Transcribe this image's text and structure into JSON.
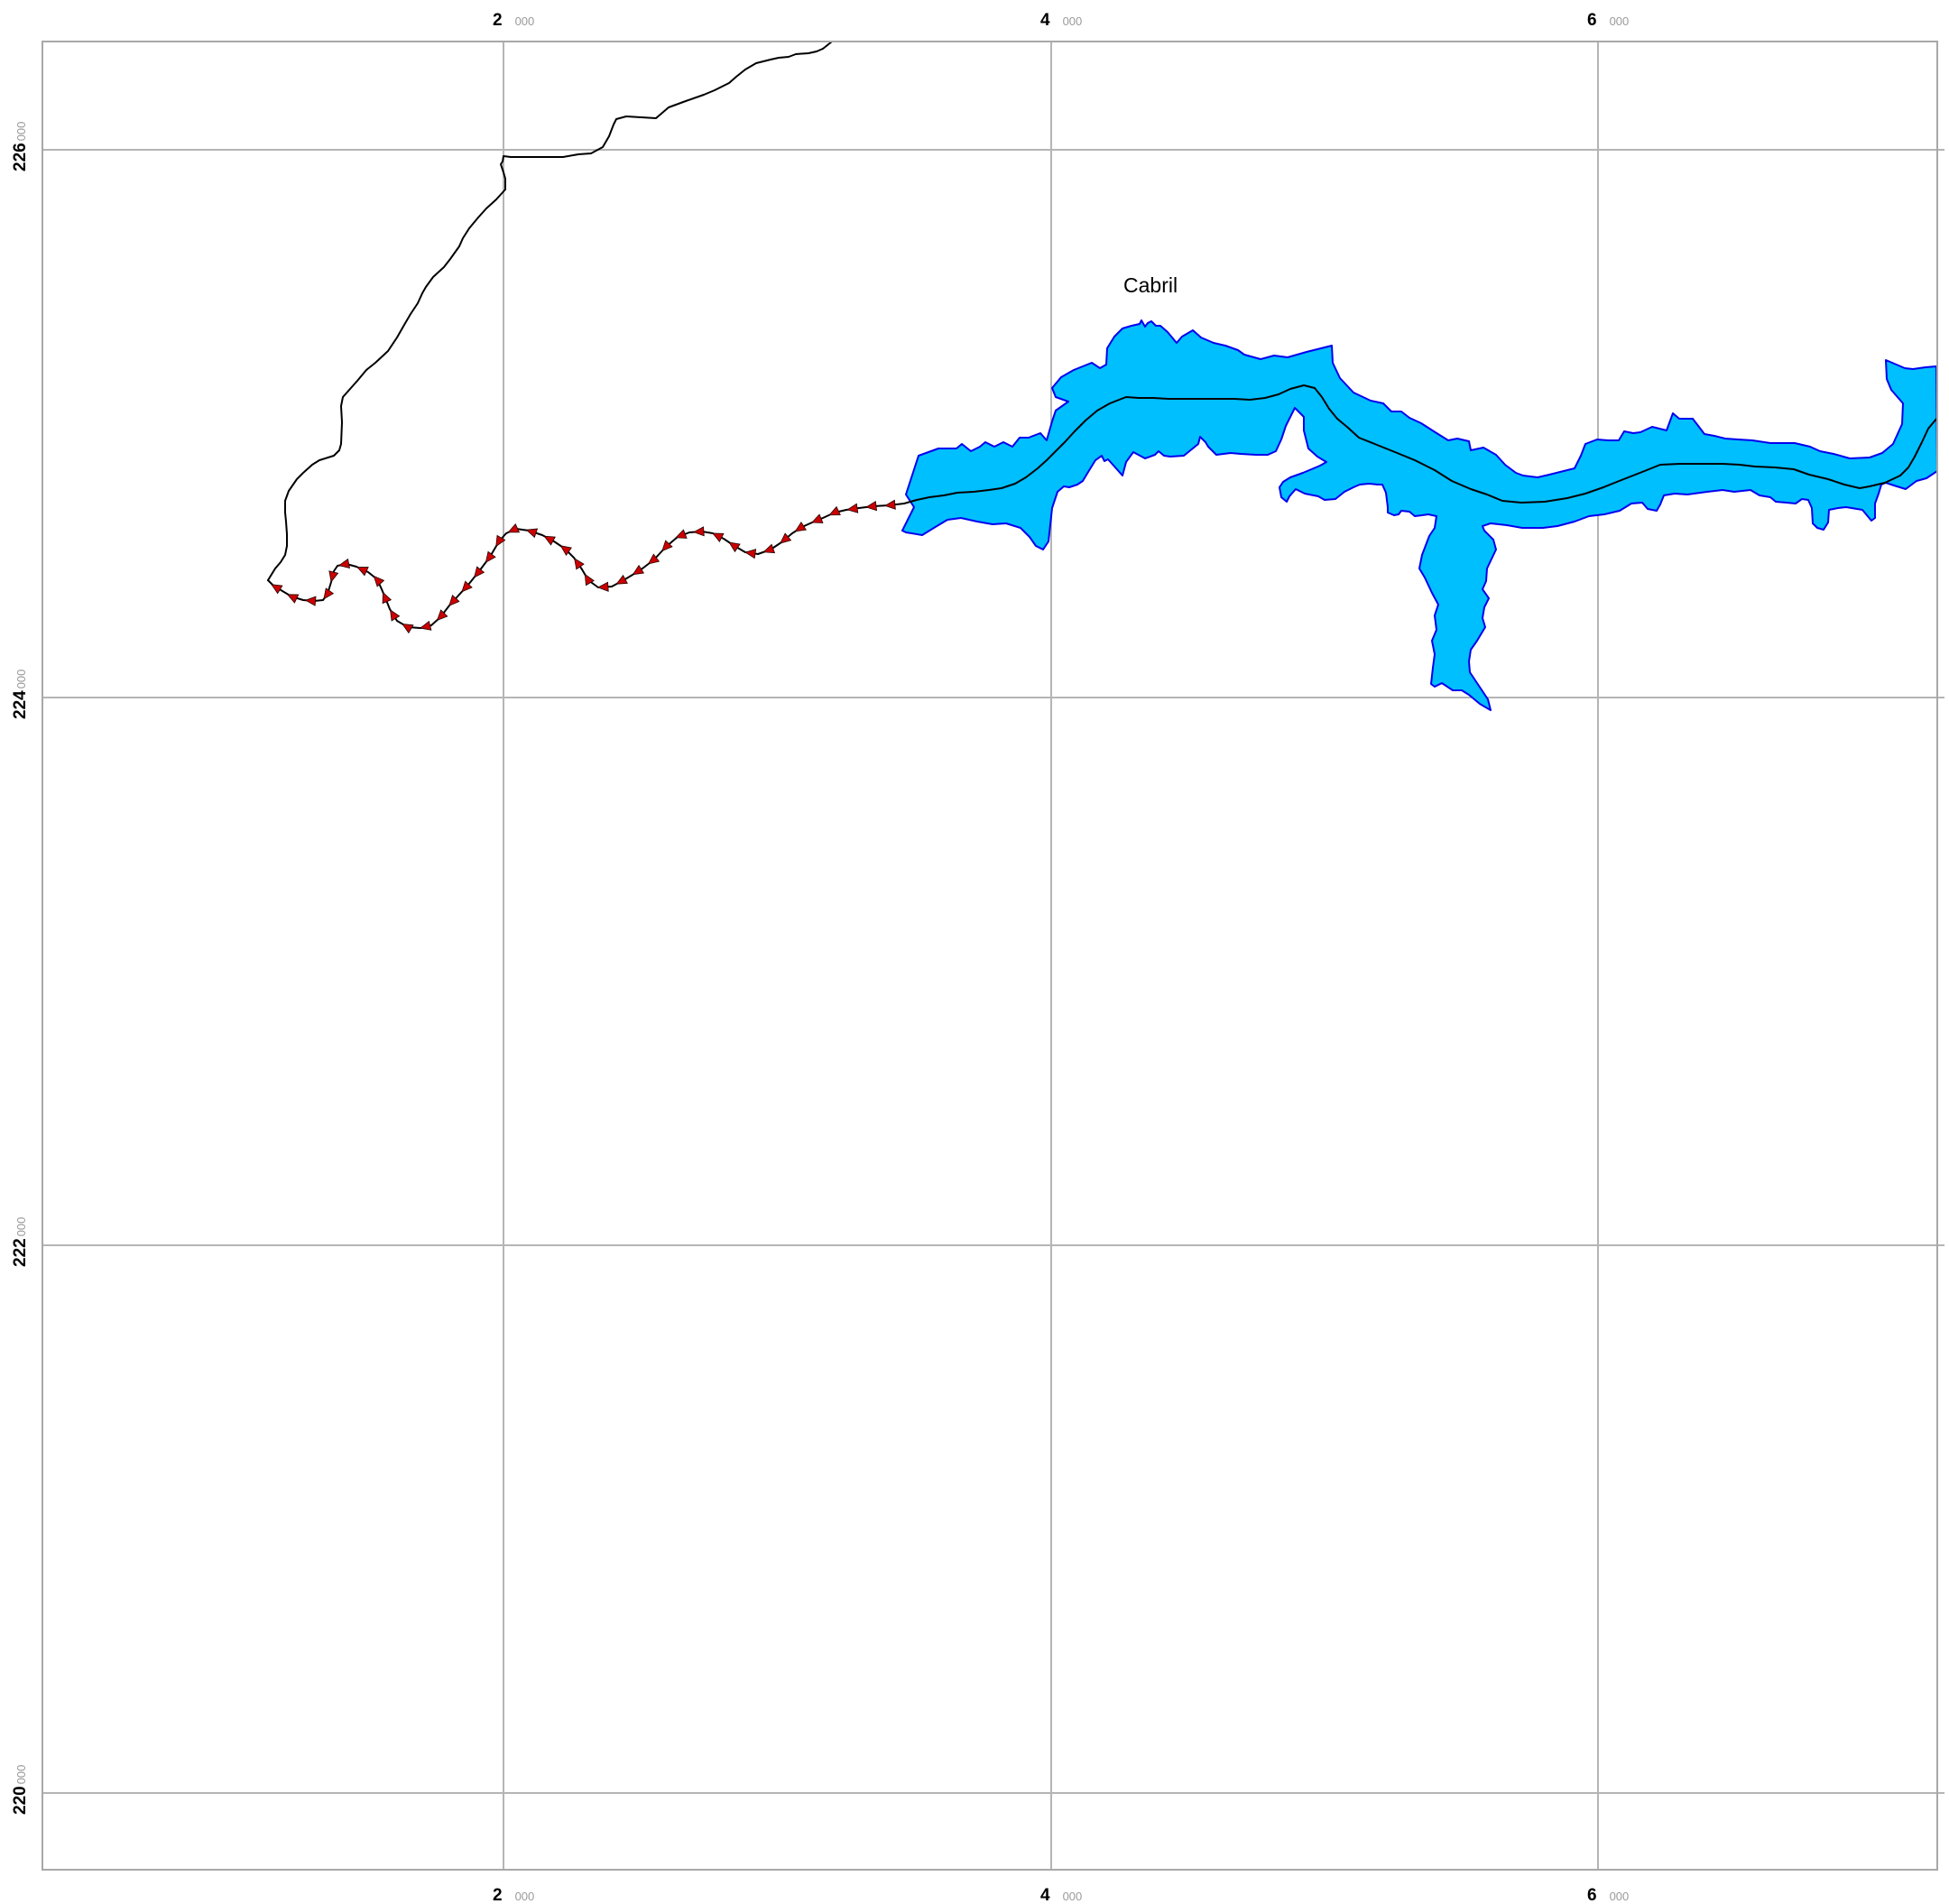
{
  "map": {
    "frame_color": "#a8a8a8",
    "grid_color": "#b5b5b5",
    "x_grid": [
      {
        "major": "2",
        "minor": "000"
      },
      {
        "major": "4",
        "minor": "000"
      },
      {
        "major": "6",
        "minor": "000"
      }
    ],
    "y_grid": [
      {
        "major": "226",
        "minor": "000"
      },
      {
        "major": "224",
        "minor": "000"
      },
      {
        "major": "222",
        "minor": "000"
      },
      {
        "major": "220",
        "minor": "000"
      }
    ],
    "place_label": "Cabril",
    "water_fill": "#00bfff",
    "water_outline": "#0000ee",
    "line_color": "#000000",
    "arrow_fill": "#cc0000",
    "icons": [
      "reservoir-polygon",
      "stream-line",
      "flow-direction-arrow-icon"
    ]
  }
}
